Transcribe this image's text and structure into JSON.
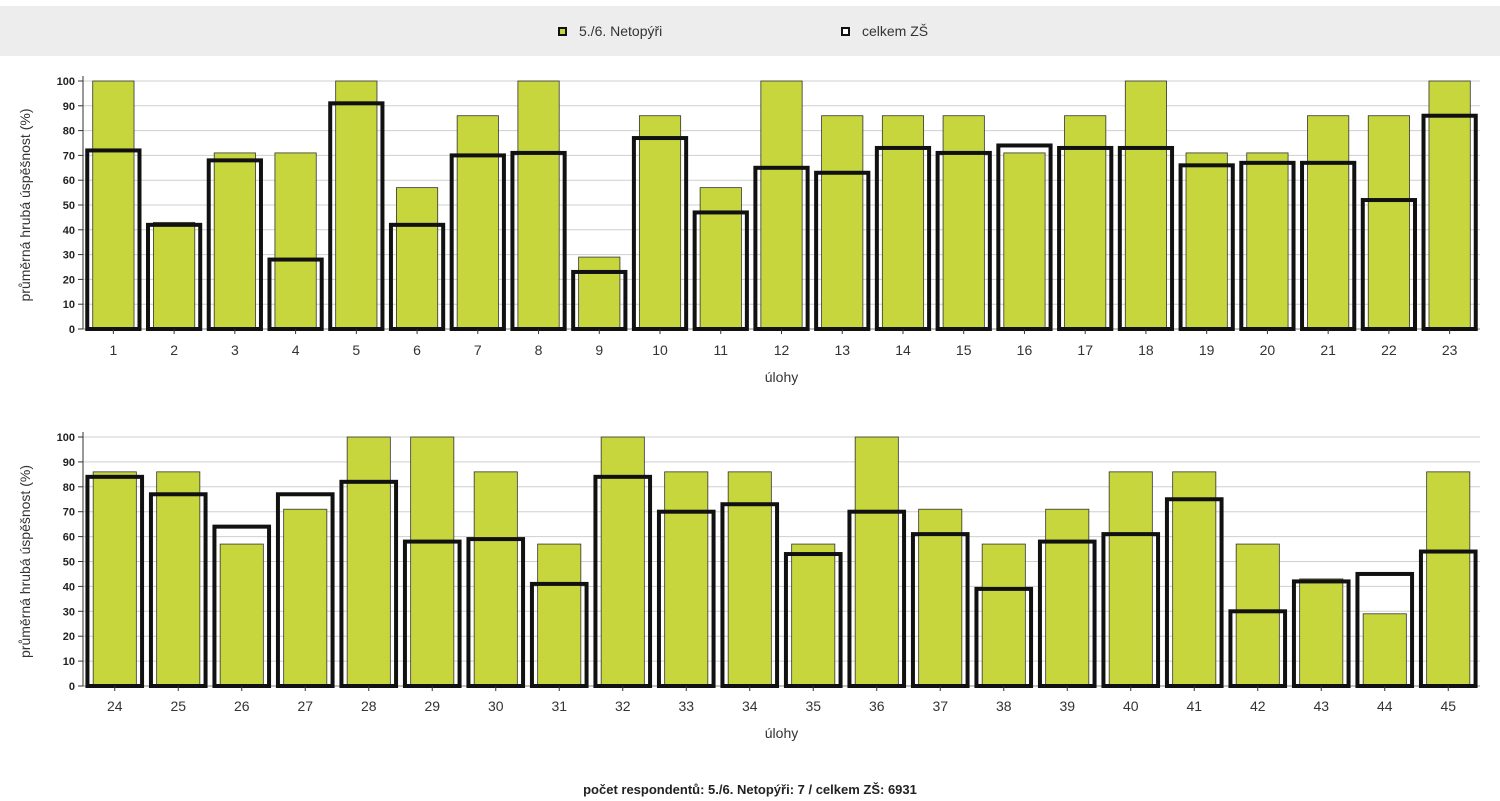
{
  "legend": {
    "items": [
      {
        "label": "5./6. Netopýři",
        "color": "#c6d63c"
      },
      {
        "label": "celkem ZŠ",
        "color": "#111111"
      }
    ]
  },
  "footer": {
    "text": "počet respondentů: 5./6. Netopýři: 7 / celkem ZŠ: 6931"
  },
  "chart_data": [
    {
      "type": "bar",
      "xlabel": "úlohy",
      "ylabel": "průměrná hrubá úspěšnost (%)",
      "ylim": [
        0,
        100
      ],
      "yticks": [
        0,
        10,
        20,
        30,
        40,
        50,
        60,
        70,
        80,
        90,
        100
      ],
      "grid": true,
      "categories": [
        "1",
        "2",
        "3",
        "4",
        "5",
        "6",
        "7",
        "8",
        "9",
        "10",
        "11",
        "12",
        "13",
        "14",
        "15",
        "16",
        "17",
        "18",
        "19",
        "20",
        "21",
        "22",
        "23"
      ],
      "series": [
        {
          "name": "5./6. Netopýři",
          "values": [
            100,
            43,
            71,
            71,
            100,
            57,
            86,
            100,
            29,
            86,
            57,
            100,
            86,
            86,
            86,
            71,
            86,
            100,
            71,
            71,
            86,
            86,
            100
          ]
        },
        {
          "name": "celkem ZŠ",
          "values": [
            72,
            42,
            68,
            28,
            91,
            42,
            70,
            71,
            23,
            77,
            47,
            65,
            63,
            73,
            71,
            74,
            73,
            73,
            66,
            67,
            67,
            52,
            86
          ]
        }
      ]
    },
    {
      "type": "bar",
      "xlabel": "úlohy",
      "ylabel": "průměrná hrubá úspěšnost (%)",
      "ylim": [
        0,
        100
      ],
      "yticks": [
        0,
        10,
        20,
        30,
        40,
        50,
        60,
        70,
        80,
        90,
        100
      ],
      "grid": true,
      "categories": [
        "24",
        "25",
        "26",
        "27",
        "28",
        "29",
        "30",
        "31",
        "32",
        "33",
        "34",
        "35",
        "36",
        "37",
        "38",
        "39",
        "40",
        "41",
        "42",
        "43",
        "44",
        "45"
      ],
      "series": [
        {
          "name": "5./6. Netopýři",
          "values": [
            86,
            86,
            57,
            71,
            100,
            100,
            86,
            57,
            100,
            86,
            86,
            57,
            100,
            71,
            57,
            71,
            86,
            86,
            57,
            43,
            29,
            86
          ]
        },
        {
          "name": "celkem ZŠ",
          "values": [
            84,
            77,
            64,
            77,
            82,
            58,
            59,
            41,
            84,
            70,
            73,
            53,
            70,
            61,
            39,
            58,
            61,
            75,
            30,
            42,
            45,
            54
          ]
        }
      ]
    }
  ]
}
